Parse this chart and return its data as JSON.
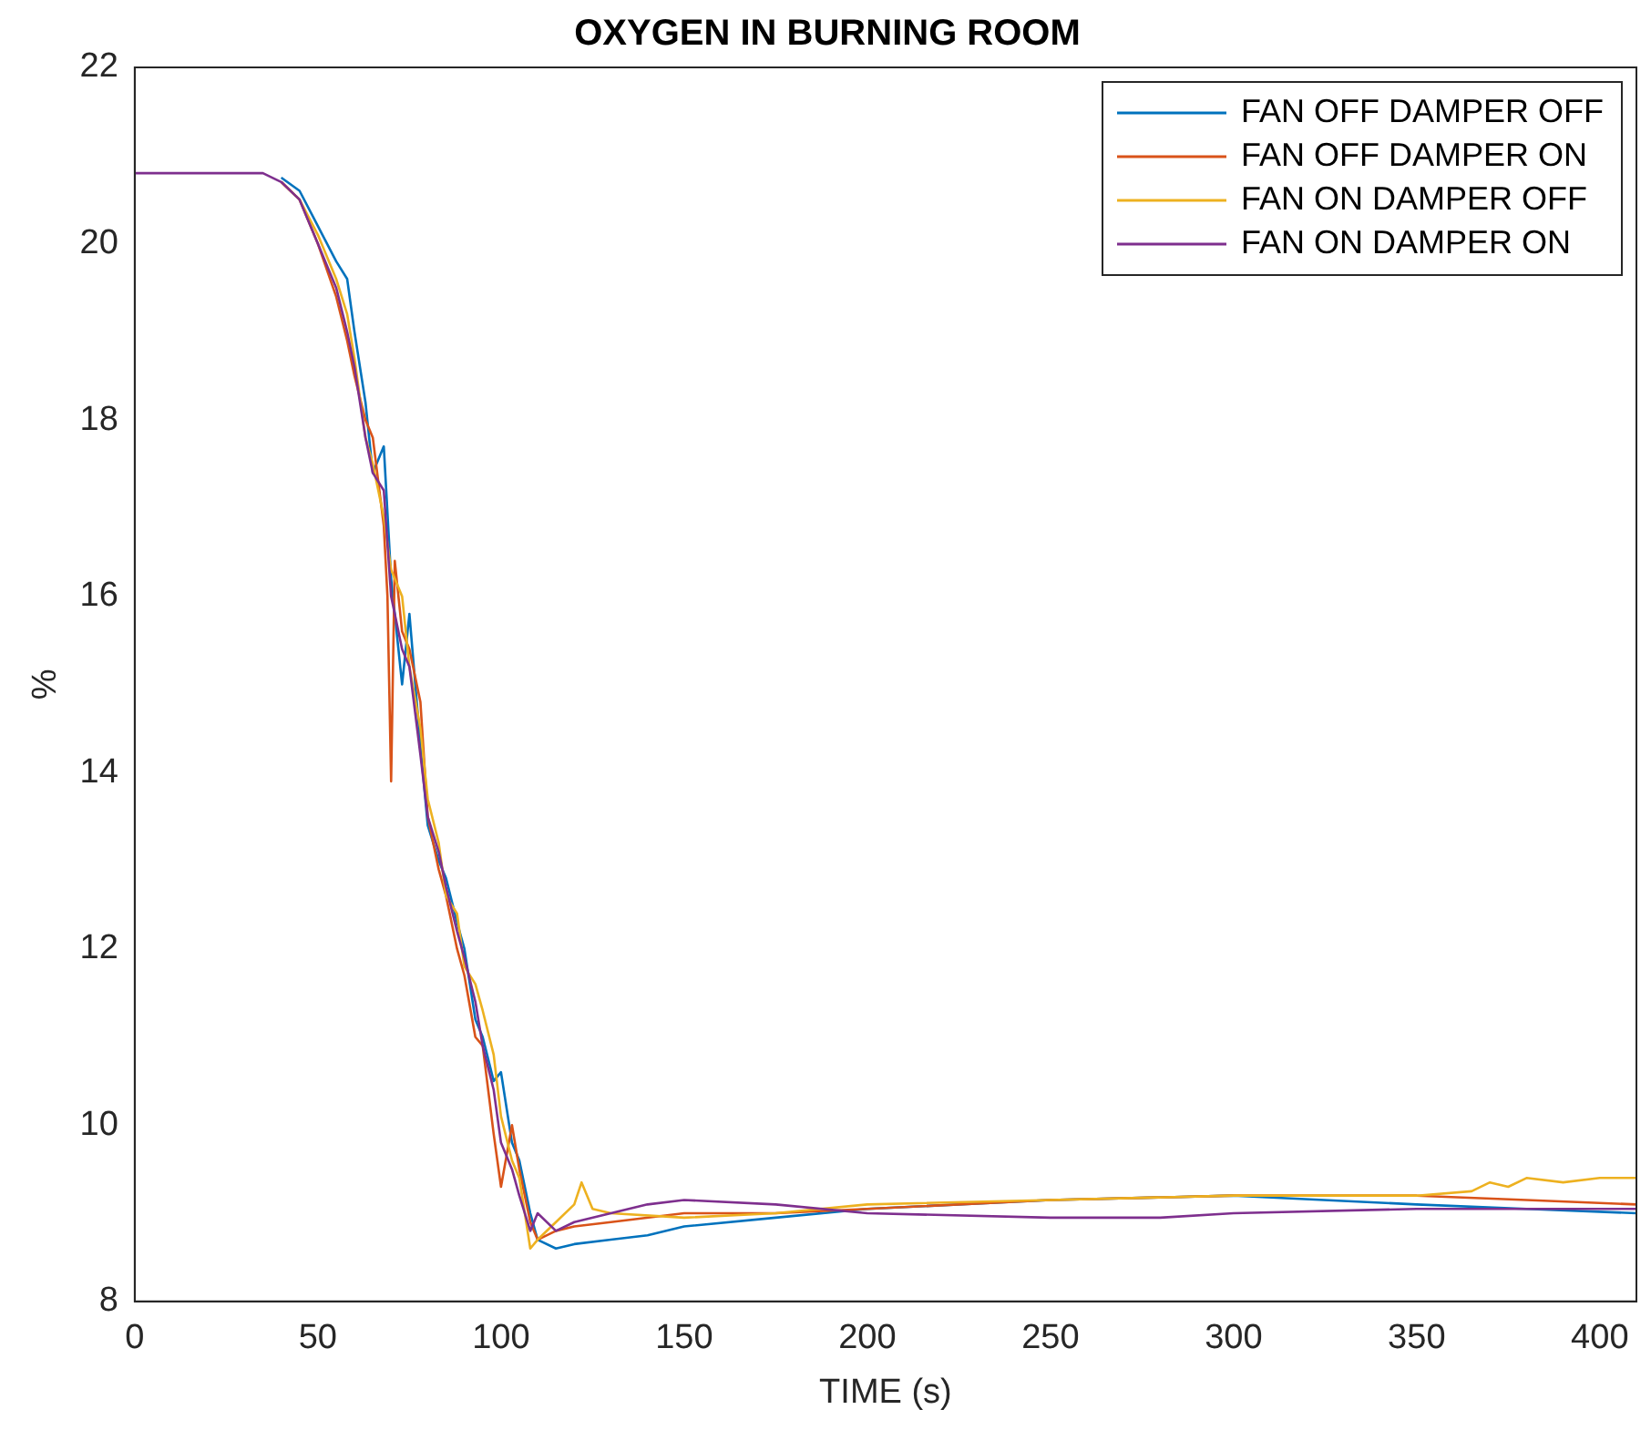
{
  "chart_data": {
    "type": "line",
    "title": "OXYGEN IN BURNING ROOM",
    "xlabel": "TIME (s)",
    "ylabel": "%",
    "xlim": [
      0,
      410
    ],
    "ylim": [
      8,
      22
    ],
    "xticks": [
      0,
      50,
      100,
      150,
      200,
      250,
      300,
      350,
      400
    ],
    "yticks": [
      8,
      10,
      12,
      14,
      16,
      18,
      20,
      22
    ],
    "grid": false,
    "legend": "top right",
    "marker": "none",
    "line_style": "solid",
    "series": [
      {
        "name": "FAN OFF DAMPER OFF",
        "color": "#0072bd",
        "x": [
          40,
          45,
          50,
          55,
          58,
          60,
          63,
          65,
          68,
          70,
          73,
          75,
          78,
          80,
          83,
          85,
          88,
          90,
          93,
          95,
          98,
          100,
          103,
          105,
          108,
          110,
          115,
          120,
          130,
          140,
          150,
          175,
          200,
          250,
          300,
          350,
          380,
          410
        ],
        "values": [
          20.75,
          20.6,
          20.2,
          19.8,
          19.6,
          19.0,
          18.2,
          17.4,
          17.7,
          16.2,
          15.0,
          15.8,
          14.3,
          13.4,
          13.0,
          12.8,
          12.3,
          12.0,
          11.2,
          11.0,
          10.5,
          10.6,
          9.8,
          9.6,
          9.0,
          8.7,
          8.6,
          8.65,
          8.7,
          8.75,
          8.85,
          8.95,
          9.05,
          9.15,
          9.2,
          9.1,
          9.05,
          9.0
        ]
      },
      {
        "name": "FAN OFF DAMPER ON",
        "color": "#d95319",
        "x": [
          40,
          45,
          50,
          55,
          58,
          60,
          63,
          65,
          68,
          69,
          70,
          71,
          73,
          75,
          78,
          80,
          83,
          85,
          88,
          90,
          93,
          95,
          98,
          100,
          103,
          105,
          108,
          110,
          115,
          120,
          130,
          150,
          175,
          200,
          250,
          300,
          350,
          380,
          410
        ],
        "values": [
          20.7,
          20.5,
          20.0,
          19.4,
          18.9,
          18.5,
          18.0,
          17.8,
          16.8,
          16.0,
          13.9,
          16.4,
          15.6,
          15.4,
          14.8,
          13.5,
          12.9,
          12.6,
          12.0,
          11.7,
          11.0,
          10.9,
          9.9,
          9.3,
          10.0,
          9.5,
          8.9,
          8.7,
          8.8,
          8.85,
          8.9,
          9.0,
          9.0,
          9.05,
          9.15,
          9.2,
          9.2,
          9.15,
          9.1
        ]
      },
      {
        "name": "FAN ON DAMPER OFF",
        "color": "#edb120",
        "x": [
          40,
          45,
          50,
          55,
          58,
          60,
          63,
          65,
          68,
          70,
          73,
          75,
          78,
          80,
          83,
          85,
          88,
          90,
          93,
          95,
          98,
          100,
          103,
          105,
          108,
          110,
          115,
          120,
          122,
          125,
          130,
          150,
          175,
          200,
          250,
          300,
          350,
          365,
          370,
          375,
          380,
          390,
          400,
          410
        ],
        "values": [
          20.7,
          20.5,
          20.1,
          19.6,
          19.2,
          18.7,
          17.8,
          17.5,
          16.9,
          16.3,
          16.0,
          15.2,
          14.5,
          13.7,
          13.2,
          12.6,
          12.4,
          11.8,
          11.6,
          11.3,
          10.8,
          10.1,
          9.6,
          9.4,
          8.6,
          8.7,
          8.9,
          9.1,
          9.35,
          9.05,
          9.0,
          8.95,
          9.0,
          9.1,
          9.15,
          9.2,
          9.2,
          9.25,
          9.35,
          9.3,
          9.4,
          9.35,
          9.4,
          9.4
        ]
      },
      {
        "name": "FAN ON DAMPER ON",
        "color": "#7e2f8e",
        "x": [
          0,
          35,
          40,
          45,
          50,
          55,
          58,
          60,
          63,
          65,
          68,
          70,
          73,
          75,
          78,
          80,
          83,
          85,
          88,
          90,
          93,
          95,
          98,
          100,
          103,
          105,
          108,
          110,
          115,
          120,
          130,
          140,
          150,
          175,
          200,
          250,
          280,
          300,
          350,
          380,
          410
        ],
        "values": [
          20.8,
          20.8,
          20.7,
          20.5,
          20.0,
          19.5,
          19.0,
          18.6,
          17.8,
          17.4,
          17.2,
          16.0,
          15.4,
          15.2,
          14.2,
          13.5,
          13.1,
          12.7,
          12.2,
          11.9,
          11.4,
          10.9,
          10.4,
          9.8,
          9.5,
          9.2,
          8.8,
          9.0,
          8.8,
          8.9,
          9.0,
          9.1,
          9.15,
          9.1,
          9.0,
          8.95,
          8.95,
          9.0,
          9.05,
          9.05,
          9.05
        ]
      }
    ]
  }
}
